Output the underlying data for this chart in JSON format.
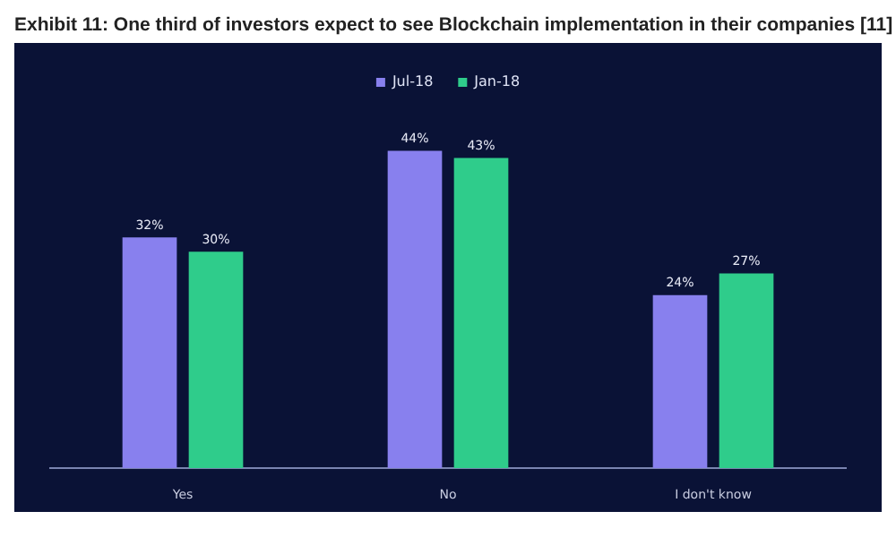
{
  "chart_data": {
    "type": "bar",
    "title": "Exhibit 11: One third of investors expect to see Blockchain implementation in their companies [11]",
    "categories": [
      "Yes",
      "No",
      "I don't know"
    ],
    "series": [
      {
        "name": "Jul-18",
        "color": "#8880ee",
        "values": [
          32,
          44,
          24
        ],
        "value_labels": [
          "32%",
          "44%",
          "24%"
        ]
      },
      {
        "name": "Jan-18",
        "color": "#2fcc8b",
        "values": [
          30,
          43,
          27
        ],
        "value_labels": [
          "30%",
          "43%",
          "27%"
        ]
      }
    ],
    "legend": "top",
    "grid": false
  }
}
